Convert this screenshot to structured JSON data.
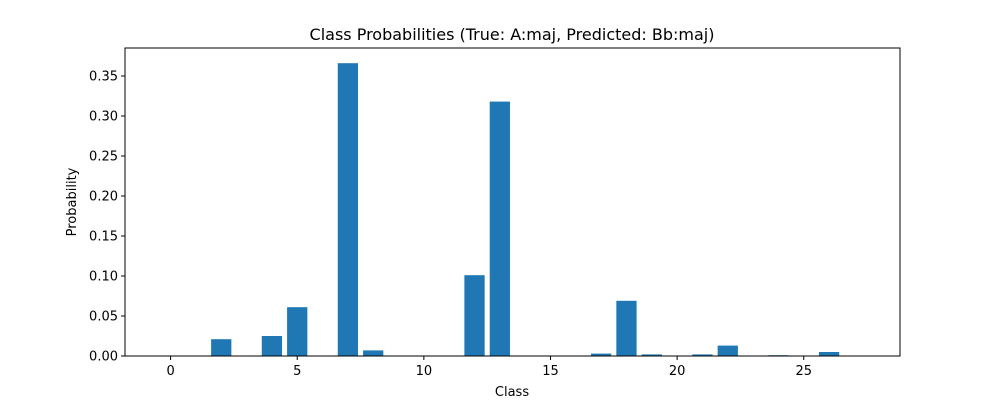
{
  "chart_data": {
    "type": "bar",
    "title": "Class Probabilities (True: A:maj, Predicted: Bb:maj)",
    "xlabel": "Class",
    "ylabel": "Probability",
    "xlim": [
      -1.8,
      28.8
    ],
    "ylim": [
      0,
      0.385
    ],
    "x_ticks": [
      0,
      5,
      10,
      15,
      20,
      25
    ],
    "y_ticks": [
      0.0,
      0.05,
      0.1,
      0.15,
      0.2,
      0.25,
      0.3,
      0.35
    ],
    "bar_color": "#1f77b4",
    "grid": false,
    "x": [
      0,
      1,
      2,
      3,
      4,
      5,
      6,
      7,
      8,
      9,
      10,
      11,
      12,
      13,
      14,
      15,
      16,
      17,
      18,
      19,
      20,
      21,
      22,
      23,
      24,
      25,
      26,
      27
    ],
    "values": [
      0.0,
      0.0,
      0.021,
      0.0,
      0.025,
      0.061,
      0.0,
      0.366,
      0.007,
      0.0,
      0.0,
      0.0,
      0.101,
      0.318,
      0.0,
      0.0,
      0.0,
      0.003,
      0.069,
      0.002,
      0.0,
      0.002,
      0.013,
      0.0,
      0.001,
      0.0,
      0.005,
      0.0
    ]
  }
}
